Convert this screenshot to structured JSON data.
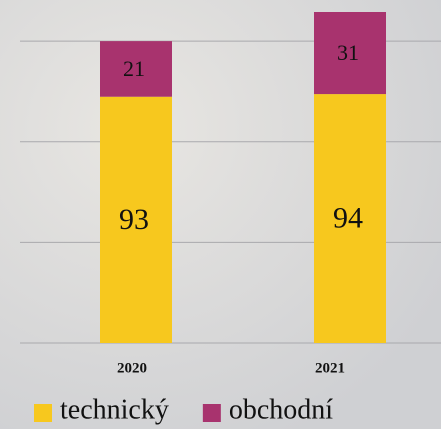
{
  "chart_data": {
    "type": "bar",
    "stacked": true,
    "categories": [
      "2020",
      "2021"
    ],
    "series": [
      {
        "name": "technický",
        "color": "#f7c81e",
        "values": [
          93,
          94
        ]
      },
      {
        "name": "obchodní",
        "color": "#a8336e",
        "values": [
          21,
          31
        ]
      }
    ],
    "ylim": [
      0,
      125
    ],
    "yticks": [
      0,
      38,
      76,
      114
    ],
    "grid": true,
    "legend": "bottom"
  }
}
